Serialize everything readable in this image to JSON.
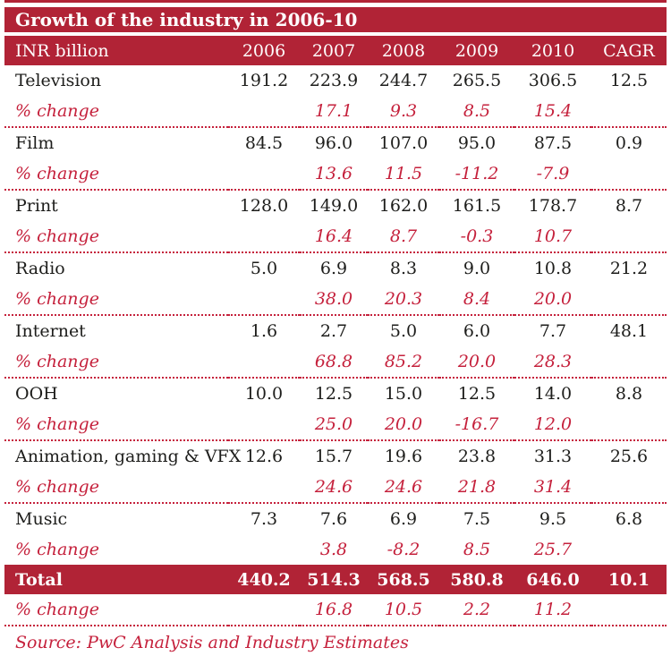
{
  "title": "Growth of the industry in 2006-10",
  "colors": {
    "band_red": "#b12336",
    "accent_red": "#c5213c",
    "text_black": "#1d1d1b"
  },
  "header": {
    "label": "INR billion",
    "columns": [
      "2006",
      "2007",
      "2008",
      "2009",
      "2010",
      "CAGR"
    ]
  },
  "pct_label": "% change",
  "rows": [
    {
      "name": "Television",
      "values": [
        "191.2",
        "223.9",
        "244.7",
        "265.5",
        "306.5",
        "12.5"
      ],
      "pct": [
        "",
        "17.1",
        "9.3",
        "8.5",
        "15.4",
        ""
      ]
    },
    {
      "name": "Film",
      "values": [
        "84.5",
        "96.0",
        "107.0",
        "95.0",
        "87.5",
        "0.9"
      ],
      "pct": [
        "",
        "13.6",
        "11.5",
        "-11.2",
        "-7.9",
        ""
      ]
    },
    {
      "name": "Print",
      "values": [
        "128.0",
        "149.0",
        "162.0",
        "161.5",
        "178.7",
        "8.7"
      ],
      "pct": [
        "",
        "16.4",
        "8.7",
        "-0.3",
        "10.7",
        ""
      ]
    },
    {
      "name": "Radio",
      "values": [
        "5.0",
        "6.9",
        "8.3",
        "9.0",
        "10.8",
        "21.2"
      ],
      "pct": [
        "",
        "38.0",
        "20.3",
        "8.4",
        "20.0",
        ""
      ]
    },
    {
      "name": "Internet",
      "values": [
        "1.6",
        "2.7",
        "5.0",
        "6.0",
        "7.7",
        "48.1"
      ],
      "pct": [
        "",
        "68.8",
        "85.2",
        "20.0",
        "28.3",
        ""
      ]
    },
    {
      "name": "OOH",
      "values": [
        "10.0",
        "12.5",
        "15.0",
        "12.5",
        "14.0",
        "8.8"
      ],
      "pct": [
        "",
        "25.0",
        "20.0",
        "-16.7",
        "12.0",
        ""
      ]
    },
    {
      "name": "Animation, gaming & VFX",
      "values": [
        "12.6",
        "15.7",
        "19.6",
        "23.8",
        "31.3",
        "25.6"
      ],
      "pct": [
        "",
        "24.6",
        "24.6",
        "21.8",
        "31.4",
        ""
      ]
    },
    {
      "name": "Music",
      "values": [
        "7.3",
        "7.6",
        "6.9",
        "7.5",
        "9.5",
        "6.8"
      ],
      "pct": [
        "",
        "3.8",
        "-8.2",
        "8.5",
        "25.7",
        ""
      ]
    }
  ],
  "total": {
    "name": "Total",
    "values": [
      "440.2",
      "514.3",
      "568.5",
      "580.8",
      "646.0",
      "10.1"
    ],
    "pct": [
      "",
      "16.8",
      "10.5",
      "2.2",
      "11.2",
      ""
    ]
  },
  "source": "Source: PwC Analysis and Industry Estimates",
  "chart_data": {
    "type": "table",
    "title": "Growth of the industry in 2006-10",
    "unit": "INR billion",
    "columns": [
      "2006",
      "2007",
      "2008",
      "2009",
      "2010",
      "CAGR"
    ],
    "rows": [
      {
        "label": "Television",
        "values": [
          191.2,
          223.9,
          244.7,
          265.5,
          306.5
        ],
        "cagr": 12.5,
        "pct_change": [
          17.1,
          9.3,
          8.5,
          15.4
        ]
      },
      {
        "label": "Film",
        "values": [
          84.5,
          96.0,
          107.0,
          95.0,
          87.5
        ],
        "cagr": 0.9,
        "pct_change": [
          13.6,
          11.5,
          -11.2,
          -7.9
        ]
      },
      {
        "label": "Print",
        "values": [
          128.0,
          149.0,
          162.0,
          161.5,
          178.7
        ],
        "cagr": 8.7,
        "pct_change": [
          16.4,
          8.7,
          -0.3,
          10.7
        ]
      },
      {
        "label": "Radio",
        "values": [
          5.0,
          6.9,
          8.3,
          9.0,
          10.8
        ],
        "cagr": 21.2,
        "pct_change": [
          38.0,
          20.3,
          8.4,
          20.0
        ]
      },
      {
        "label": "Internet",
        "values": [
          1.6,
          2.7,
          5.0,
          6.0,
          7.7
        ],
        "cagr": 48.1,
        "pct_change": [
          68.8,
          85.2,
          20.0,
          28.3
        ]
      },
      {
        "label": "OOH",
        "values": [
          10.0,
          12.5,
          15.0,
          12.5,
          14.0
        ],
        "cagr": 8.8,
        "pct_change": [
          25.0,
          20.0,
          -16.7,
          12.0
        ]
      },
      {
        "label": "Animation, gaming & VFX",
        "values": [
          12.6,
          15.7,
          19.6,
          23.8,
          31.3
        ],
        "cagr": 25.6,
        "pct_change": [
          24.6,
          24.6,
          21.8,
          31.4
        ]
      },
      {
        "label": "Music",
        "values": [
          7.3,
          7.6,
          6.9,
          7.5,
          9.5
        ],
        "cagr": 6.8,
        "pct_change": [
          3.8,
          -8.2,
          8.5,
          25.7
        ]
      },
      {
        "label": "Total",
        "values": [
          440.2,
          514.3,
          568.5,
          580.8,
          646.0
        ],
        "cagr": 10.1,
        "pct_change": [
          16.8,
          10.5,
          2.2,
          11.2
        ]
      }
    ],
    "source": "Source: PwC Analysis and Industry Estimates"
  }
}
